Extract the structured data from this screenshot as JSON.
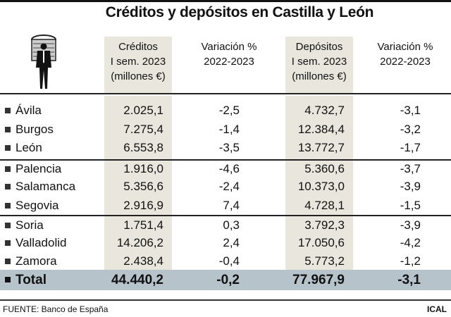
{
  "title": "Créditos y depósitos en Castilla y León",
  "colors": {
    "shade": "#e9e6de",
    "total_band": "#b7c3cb"
  },
  "icon": "businessman-with-coins-icon",
  "chart_data": {
    "type": "table",
    "title": "Créditos y depósitos en Castilla y León",
    "columns": [
      "",
      "Créditos I sem. 2023 (millones €)",
      "Variación % 2022-2023",
      "Depósitos I sem. 2023 (millones €)",
      "Variación % 2022-2023"
    ],
    "header": {
      "creditos": [
        "Créditos",
        "I sem. 2023",
        "(millones €)"
      ],
      "var1": [
        "Variación %",
        "2022-2023"
      ],
      "depositos": [
        "Depósitos",
        "I sem. 2023",
        "(millones €)"
      ],
      "var2": [
        "Variación %",
        "2022-2023"
      ]
    },
    "rows": [
      {
        "province": "Ávila",
        "creditos": "2.025,1",
        "var_creditos": "-2,5",
        "depositos": "4.732,7",
        "var_depositos": "-3,1"
      },
      {
        "province": "Burgos",
        "creditos": "7.275,4",
        "var_creditos": "-1,4",
        "depositos": "12.384,4",
        "var_depositos": "-3,2"
      },
      {
        "province": "León",
        "creditos": "6.553,8",
        "var_creditos": "-3,5",
        "depositos": "13.772,7",
        "var_depositos": "-1,7"
      },
      {
        "province": "Palencia",
        "creditos": "1.916,0",
        "var_creditos": "-4,6",
        "depositos": "5.360,6",
        "var_depositos": "-3,7"
      },
      {
        "province": "Salamanca",
        "creditos": "5.356,6",
        "var_creditos": "-2,4",
        "depositos": "10.373,0",
        "var_depositos": "-3,9"
      },
      {
        "province": "Segovia",
        "creditos": "2.916,9",
        "var_creditos": "7,4",
        "depositos": "4.728,1",
        "var_depositos": "-1,5"
      },
      {
        "province": "Soria",
        "creditos": "1.751,4",
        "var_creditos": "0,3",
        "depositos": "3.792,3",
        "var_depositos": "-3,9"
      },
      {
        "province": "Valladolid",
        "creditos": "14.206,2",
        "var_creditos": "2,4",
        "depositos": "17.050,6",
        "var_depositos": "-4,2"
      },
      {
        "province": "Zamora",
        "creditos": "2.438,4",
        "var_creditos": "-0,4",
        "depositos": "5.773,2",
        "var_depositos": "-1,2"
      }
    ],
    "total": {
      "province": "Total",
      "creditos": "44.440,2",
      "var_creditos": "-0,2",
      "depositos": "77.967,9",
      "var_depositos": "-3,1"
    }
  },
  "footer": {
    "source": "FUENTE: Banco de España",
    "credit": "ICAL"
  }
}
